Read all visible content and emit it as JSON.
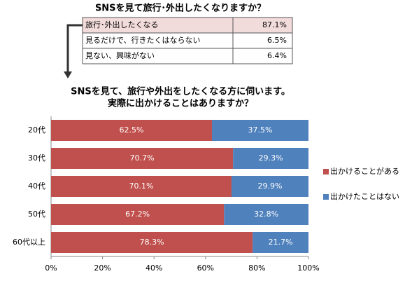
{
  "table": {
    "title": "SNSを見て旅行･外出したくなりますか？",
    "rows": [
      [
        "旅行･外出したくなる",
        "87.1%"
      ],
      [
        "見るだけで、行きたくはならない",
        "6.5%"
      ],
      [
        "見ない、興味がない",
        "6.4%"
      ]
    ]
  },
  "chart_data": {
    "type": "stacked_barh",
    "title": [
      "SNSを見て、旅行や外出をしたくなる方に伺います。",
      "実際に出かけることはありますか？"
    ],
    "categories": [
      "20代",
      "30代",
      "40代",
      "50代",
      "60代以上"
    ],
    "series": [
      {
        "name": "出かけることがある",
        "color": "#c0504d",
        "values": [
          62.5,
          70.7,
          70.1,
          67.2,
          78.3
        ],
        "value_labels": [
          "62.5%",
          "70.7%",
          "70.1%",
          "67.2%",
          "78.3%"
        ]
      },
      {
        "name": "出かけたことはない",
        "color": "#4f81bd",
        "values": [
          37.5,
          29.3,
          29.9,
          32.8,
          21.7
        ],
        "value_labels": [
          "37.5%",
          "29.3%",
          "29.9%",
          "32.8%",
          "21.7%"
        ]
      }
    ],
    "xlim": [
      0,
      100
    ],
    "xticks": [
      {
        "value": 0,
        "label": "0%"
      },
      {
        "value": 20,
        "label": "20%"
      },
      {
        "value": 40,
        "label": "40%"
      },
      {
        "value": 60,
        "label": "60%"
      },
      {
        "value": 80,
        "label": "80%"
      },
      {
        "value": 100,
        "label": "100%"
      }
    ],
    "grid": false,
    "legend": "right"
  }
}
